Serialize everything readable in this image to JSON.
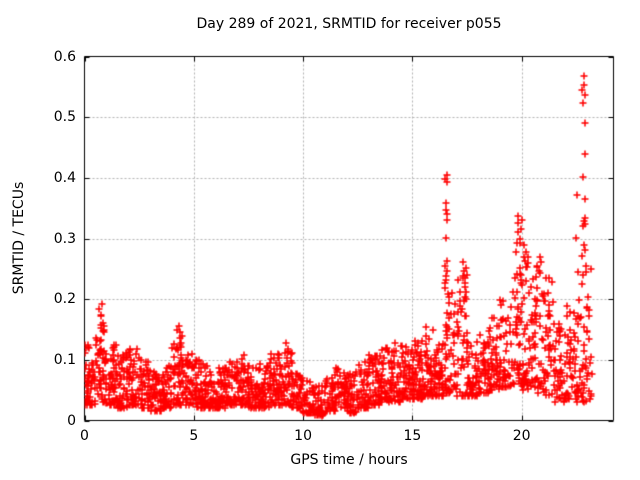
{
  "chart_data": {
    "type": "scatter",
    "title": "Day 289 of 2021, SRMTID for receiver p055",
    "xlabel": "GPS time / hours",
    "ylabel": "SRMTID / TECUs",
    "xlim": [
      0,
      24.2
    ],
    "ylim": [
      0,
      0.6
    ],
    "xticks": [
      0,
      5,
      10,
      15,
      20
    ],
    "xtick_labels": [
      "0",
      "5",
      "10",
      "15",
      "20"
    ],
    "yticks": [
      0,
      0.1,
      0.2,
      0.3,
      0.4,
      0.5,
      0.6
    ],
    "ytick_labels": [
      "0",
      "0.1",
      "0.2",
      "0.3",
      "0.4",
      "0.5",
      "0.6"
    ],
    "grid": true,
    "legend": "none",
    "marker": {
      "shape": "plus",
      "size": 7,
      "color": "#ff0000"
    },
    "colors": {
      "frame": "#000000",
      "grid": "#b3b3b3",
      "text": "#000000",
      "background": "#ffffff"
    },
    "seed": 289,
    "baseline_format": [
      "x_start_hour",
      "x_end_hour",
      "count",
      "y_min",
      "y_max"
    ],
    "baseline_segments": [
      [
        0.0,
        0.5,
        55,
        0.025,
        0.125
      ],
      [
        0.5,
        1.0,
        55,
        0.03,
        0.16
      ],
      [
        1.0,
        1.5,
        55,
        0.025,
        0.125
      ],
      [
        1.5,
        2.0,
        50,
        0.02,
        0.115
      ],
      [
        2.0,
        2.5,
        50,
        0.025,
        0.12
      ],
      [
        2.5,
        3.0,
        50,
        0.02,
        0.1
      ],
      [
        3.0,
        3.5,
        45,
        0.015,
        0.08
      ],
      [
        3.5,
        4.0,
        45,
        0.02,
        0.09
      ],
      [
        4.0,
        4.5,
        50,
        0.025,
        0.13
      ],
      [
        4.5,
        5.0,
        50,
        0.025,
        0.115
      ],
      [
        5.0,
        5.5,
        50,
        0.02,
        0.1
      ],
      [
        5.5,
        6.0,
        50,
        0.02,
        0.09
      ],
      [
        6.0,
        6.5,
        50,
        0.02,
        0.095
      ],
      [
        6.5,
        7.0,
        50,
        0.025,
        0.1
      ],
      [
        7.0,
        7.5,
        50,
        0.025,
        0.11
      ],
      [
        7.5,
        8.0,
        50,
        0.02,
        0.09
      ],
      [
        8.0,
        8.5,
        50,
        0.02,
        0.095
      ],
      [
        8.5,
        9.0,
        50,
        0.025,
        0.11
      ],
      [
        9.0,
        9.5,
        50,
        0.025,
        0.12
      ],
      [
        9.5,
        10.0,
        50,
        0.02,
        0.09
      ],
      [
        10.0,
        10.5,
        45,
        0.012,
        0.07
      ],
      [
        10.5,
        11.0,
        45,
        0.008,
        0.06
      ],
      [
        11.0,
        11.5,
        45,
        0.015,
        0.075
      ],
      [
        11.5,
        12.0,
        45,
        0.02,
        0.09
      ],
      [
        12.0,
        12.5,
        45,
        0.012,
        0.08
      ],
      [
        12.5,
        13.0,
        45,
        0.02,
        0.1
      ],
      [
        13.0,
        13.5,
        50,
        0.025,
        0.11
      ],
      [
        13.5,
        14.0,
        50,
        0.03,
        0.125
      ],
      [
        14.0,
        14.5,
        50,
        0.03,
        0.13
      ],
      [
        14.5,
        15.0,
        50,
        0.035,
        0.125
      ],
      [
        15.0,
        15.5,
        55,
        0.035,
        0.14
      ],
      [
        15.5,
        16.0,
        55,
        0.04,
        0.155
      ],
      [
        16.0,
        16.5,
        50,
        0.04,
        0.135
      ],
      [
        16.5,
        17.0,
        45,
        0.045,
        0.22
      ],
      [
        17.0,
        17.5,
        45,
        0.04,
        0.24
      ],
      [
        17.5,
        18.0,
        45,
        0.04,
        0.13
      ],
      [
        18.0,
        18.5,
        45,
        0.045,
        0.15
      ],
      [
        18.5,
        19.0,
        45,
        0.05,
        0.17
      ],
      [
        19.0,
        19.5,
        45,
        0.055,
        0.2
      ],
      [
        19.5,
        20.0,
        50,
        0.06,
        0.3
      ],
      [
        20.0,
        20.5,
        50,
        0.05,
        0.28
      ],
      [
        20.5,
        21.0,
        45,
        0.045,
        0.26
      ],
      [
        21.0,
        21.5,
        45,
        0.04,
        0.24
      ],
      [
        21.5,
        22.0,
        40,
        0.03,
        0.16
      ],
      [
        22.0,
        22.5,
        40,
        0.035,
        0.2
      ],
      [
        22.5,
        23.2,
        60,
        0.03,
        0.26
      ]
    ],
    "spike_clusters": [
      {
        "x": 0.75,
        "xspread": 0.12,
        "ys": [
          0.19,
          0.183,
          0.176,
          0.17,
          0.162,
          0.155,
          0.148
        ]
      },
      {
        "x": 4.35,
        "xspread": 0.12,
        "ys": [
          0.157,
          0.151,
          0.146,
          0.14,
          0.134,
          0.128,
          0.122
        ]
      },
      {
        "x": 9.3,
        "xspread": 0.08,
        "ys": [
          0.127,
          0.118
        ]
      },
      {
        "x": 16.55,
        "xspread": 0.07,
        "ys": [
          0.405,
          0.398,
          0.392,
          0.357,
          0.346,
          0.338,
          0.33,
          0.302,
          0.262,
          0.255,
          0.247,
          0.24,
          0.232,
          0.225,
          0.218
        ]
      },
      {
        "x": 17.35,
        "xspread": 0.1,
        "ys": [
          0.262,
          0.252,
          0.244,
          0.236,
          0.228,
          0.22,
          0.212,
          0.204,
          0.198
        ]
      },
      {
        "x": 19.9,
        "xspread": 0.12,
        "ys": [
          0.336,
          0.33,
          0.324,
          0.316,
          0.308,
          0.3,
          0.292
        ]
      },
      {
        "x": 20.15,
        "xspread": 0.05,
        "ys": [
          0.29,
          0.27
        ]
      },
      {
        "x": 20.8,
        "xspread": 0.1,
        "ys": [
          0.27,
          0.262,
          0.255,
          0.248
        ]
      },
      {
        "x": 22.5,
        "xspread": 0.05,
        "ys": [
          0.374,
          0.3
        ]
      },
      {
        "x": 22.85,
        "xspread": 0.1,
        "ys": [
          0.569,
          0.555,
          0.545,
          0.535,
          0.524,
          0.49,
          0.44,
          0.401,
          0.365,
          0.336,
          0.33,
          0.324,
          0.318,
          0.29,
          0.28,
          0.27
        ]
      }
    ]
  }
}
